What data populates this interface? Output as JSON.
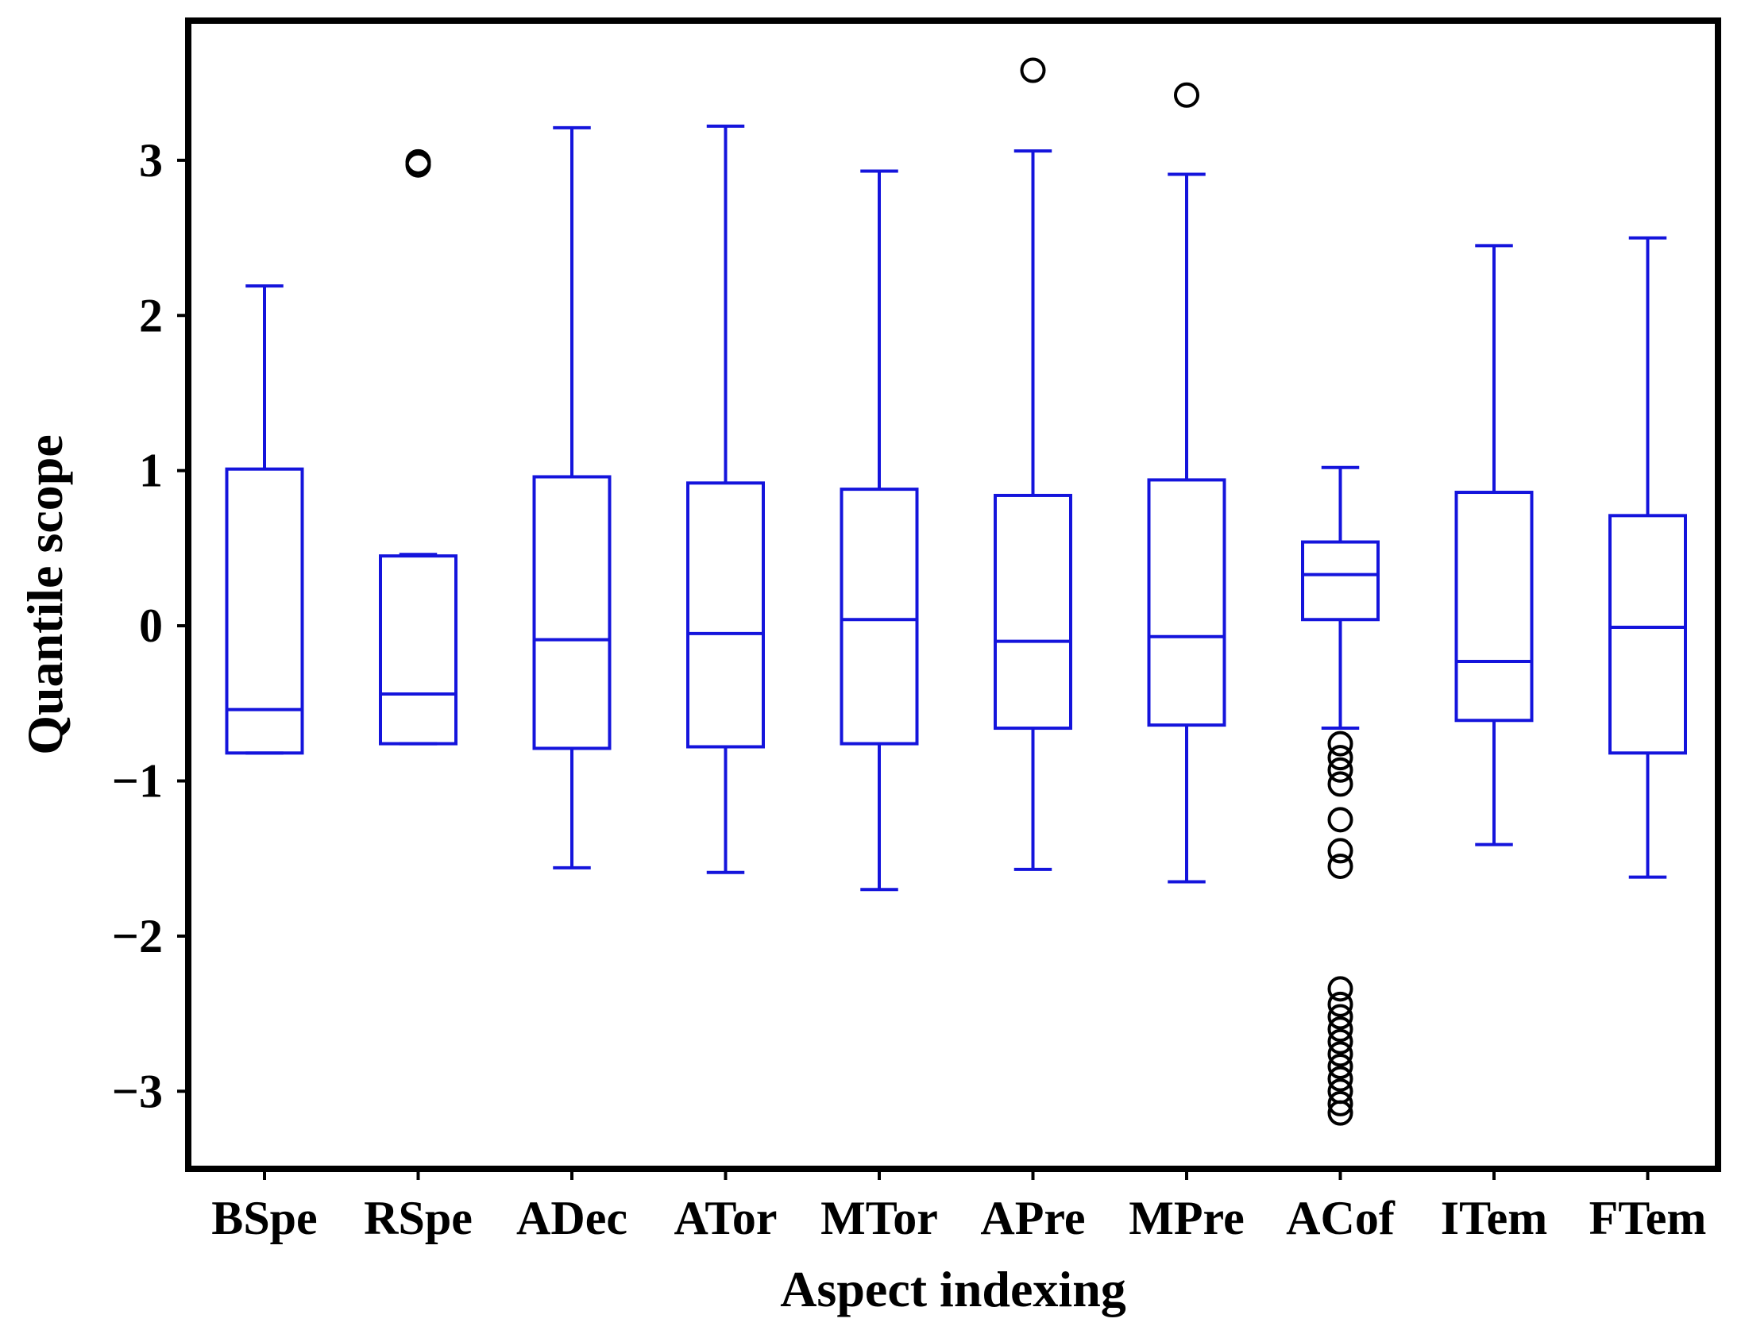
{
  "chart_data": {
    "type": "boxplot",
    "title": "",
    "xlabel": "Aspect indexing",
    "ylabel": "Quantile scope",
    "ylim": [
      -3.5,
      3.9
    ],
    "yticks": [
      -3,
      -2,
      -1,
      0,
      1,
      2,
      3
    ],
    "ytick_labels": [
      "−3",
      "−2",
      "−1",
      "0",
      "1",
      "2",
      "3"
    ],
    "grid": false,
    "legend": "none",
    "colors": {
      "box": "#1414dc",
      "outlier": "#000000",
      "frame": "#000000"
    },
    "categories": [
      "BSpe",
      "RSpe",
      "ADec",
      "ATor",
      "MTor",
      "APre",
      "MPre",
      "ACof",
      "ITem",
      "FTem"
    ],
    "boxes": [
      {
        "label": "BSpe",
        "whislo": -0.82,
        "q1": -0.82,
        "med": -0.54,
        "q3": 1.01,
        "whishi": 2.19,
        "fliers": []
      },
      {
        "label": "RSpe",
        "whislo": -0.76,
        "q1": -0.76,
        "med": -0.44,
        "q3": 0.45,
        "whishi": 0.46,
        "fliers": [
          2.97,
          2.99
        ]
      },
      {
        "label": "ADec",
        "whislo": -1.56,
        "q1": -0.79,
        "med": -0.09,
        "q3": 0.96,
        "whishi": 3.21,
        "fliers": []
      },
      {
        "label": "ATor",
        "whislo": -1.59,
        "q1": -0.78,
        "med": -0.05,
        "q3": 0.92,
        "whishi": 3.22,
        "fliers": []
      },
      {
        "label": "MTor",
        "whislo": -1.7,
        "q1": -0.76,
        "med": 0.04,
        "q3": 0.88,
        "whishi": 2.93,
        "fliers": []
      },
      {
        "label": "APre",
        "whislo": -1.57,
        "q1": -0.66,
        "med": -0.1,
        "q3": 0.84,
        "whishi": 3.06,
        "fliers": [
          3.58
        ]
      },
      {
        "label": "MPre",
        "whislo": -1.65,
        "q1": -0.64,
        "med": -0.07,
        "q3": 0.94,
        "whishi": 2.91,
        "fliers": [
          3.42
        ]
      },
      {
        "label": "ACof",
        "whislo": -0.66,
        "q1": 0.04,
        "med": 0.33,
        "q3": 0.54,
        "whishi": 1.02,
        "fliers": [
          -0.76,
          -0.85,
          -0.93,
          -1.02,
          -1.25,
          -1.45,
          -1.55,
          -2.34,
          -2.44,
          -2.52,
          -2.6,
          -2.68,
          -2.76,
          -2.84,
          -2.92,
          -3.0,
          -3.08,
          -3.14
        ]
      },
      {
        "label": "ITem",
        "whislo": -1.41,
        "q1": -0.61,
        "med": -0.23,
        "q3": 0.86,
        "whishi": 2.45,
        "fliers": []
      },
      {
        "label": "FTem",
        "whislo": -1.62,
        "q1": -0.82,
        "med": -0.01,
        "q3": 0.71,
        "whishi": 2.5,
        "fliers": []
      }
    ]
  }
}
